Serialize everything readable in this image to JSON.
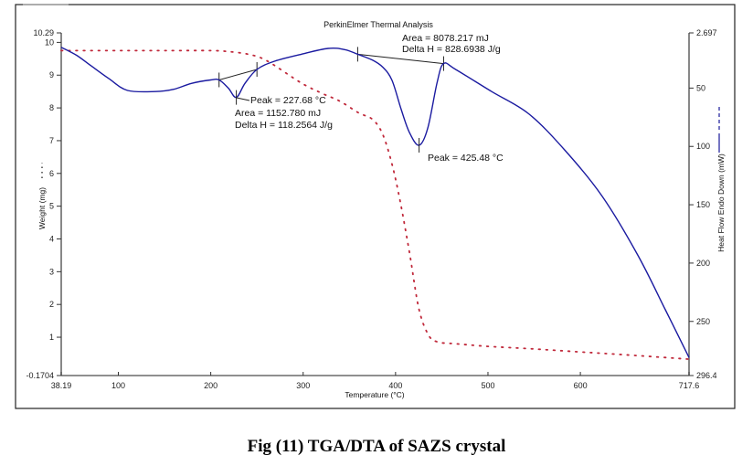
{
  "chart_data": {
    "type": "line",
    "title": "PerkinElmer Thermal Analysis",
    "xlabel": "Temperature (°C)",
    "ylabel_left": "Weight (mg)",
    "ylabel_right": "Heat Flow Endo Down (mW)",
    "xlim": [
      38.19,
      717.6
    ],
    "ylim_left": [
      -0.1704,
      10.29
    ],
    "ylim_right": [
      2.697,
      296.4
    ],
    "right_axis_inverted": true,
    "x_ticks": [
      "38.19",
      "100",
      "200",
      "300",
      "400",
      "500",
      "600",
      "717.6"
    ],
    "x_tick_values": [
      38.19,
      100,
      200,
      300,
      400,
      500,
      600,
      717.6
    ],
    "y_left_ticks": [
      "10.29",
      "10",
      "9",
      "8",
      "7",
      "6",
      "5",
      "4",
      "3",
      "2",
      "1",
      "-0.1704"
    ],
    "y_left_tick_values": [
      10.29,
      10,
      9,
      8,
      7,
      6,
      5,
      4,
      3,
      2,
      1,
      -0.1704
    ],
    "y_right_ticks": [
      "2.697",
      "50",
      "100",
      "150",
      "200",
      "250",
      "296.4"
    ],
    "y_right_tick_values": [
      2.697,
      50,
      100,
      150,
      200,
      250,
      296.4
    ],
    "grid": false,
    "series": [
      {
        "name": "Weight (TGA)",
        "axis": "left",
        "style": "dotted",
        "color": "#c0283a",
        "x": [
          38.2,
          100,
          150,
          200,
          219,
          240,
          260,
          298,
          320,
          340,
          360,
          375,
          386,
          396,
          405,
          415,
          425,
          435,
          445,
          465,
          500,
          550,
          600,
          650,
          717.6
        ],
        "y": [
          9.75,
          9.75,
          9.75,
          9.75,
          9.72,
          9.64,
          9.45,
          8.76,
          8.45,
          8.2,
          7.85,
          7.65,
          7.2,
          6.3,
          5.15,
          3.6,
          1.9,
          1.1,
          0.86,
          0.8,
          0.72,
          0.64,
          0.55,
          0.46,
          0.33
        ]
      },
      {
        "name": "Heat Flow (DTA)",
        "axis": "right",
        "style": "solid",
        "color": "#1a1aa0",
        "x": [
          38.2,
          55,
          70.6,
          90,
          110,
          140,
          160,
          179,
          200,
          209,
          219,
          227.68,
          237,
          250,
          269,
          298,
          327,
          345,
          359,
          375,
          386,
          396,
          406,
          415,
          425.48,
          435,
          445,
          452,
          465,
          504,
          544,
          583,
          623,
          662,
          692,
          717.6
        ],
        "y": [
          15,
          22,
          31,
          42,
          52,
          53,
          51,
          46,
          43,
          43,
          50,
          58,
          46,
          34,
          27,
          21,
          16,
          17,
          21,
          26,
          32,
          43,
          68,
          88,
          99,
          84,
          45,
          29,
          34,
          53,
          72,
          103,
          142,
          193,
          240,
          281
        ]
      }
    ],
    "baselines": [
      {
        "x": [
          209,
          250
        ]
      },
      {
        "x": [
          359,
          452
        ]
      }
    ],
    "annotations": [
      {
        "peak_label": "Peak = 227.68 °C",
        "area": "Area = 1152.780 mJ",
        "delta_h": "Delta H = 118.2564 J/g",
        "peak_x": 227.68
      },
      {
        "peak_label": "Peak = 425.48 °C",
        "area": "Area = 8078.217 mJ",
        "delta_h": "Delta H = 828.6938 J/g",
        "peak_x": 425.48
      }
    ]
  },
  "caption": "Fig (11) TGA/DTA of SAZS crystal"
}
